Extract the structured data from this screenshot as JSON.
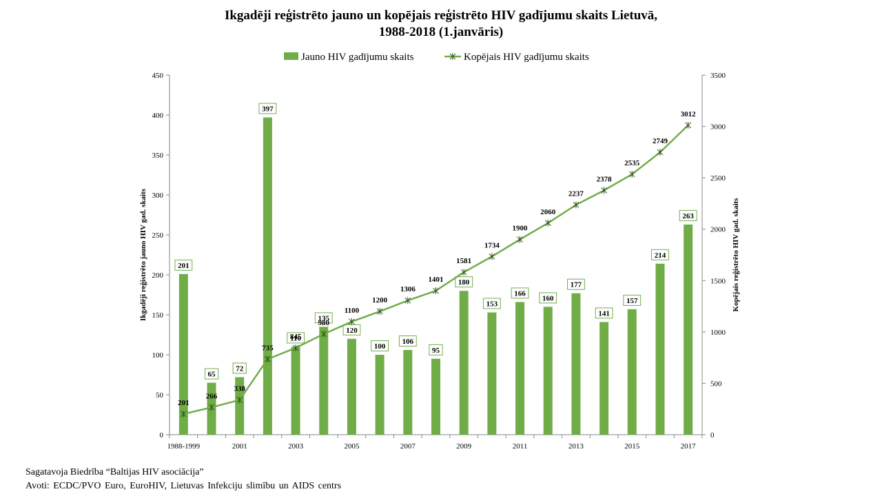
{
  "chart_data": {
    "type": "bar",
    "title": [
      "Ikgadēji reģistrēto jauno un kopējais reģistrēto HIV gadījumu skaits Lietuvā,",
      "1988-2018 (1.janvāris)"
    ],
    "categories": [
      "1988-1999",
      "",
      "2001",
      "",
      "2003",
      "",
      "2005",
      "",
      "2007",
      "",
      "2009",
      "",
      "2011",
      "",
      "2013",
      "",
      "2015",
      "",
      "2017"
    ],
    "series": [
      {
        "name": "Jauno HIV gadījumu skaits",
        "values": [
          201,
          65,
          72,
          397,
          110,
          135,
          120,
          100,
          106,
          95,
          180,
          153,
          166,
          160,
          177,
          141,
          157,
          214,
          263
        ]
      },
      {
        "name": "Kopējais HIV gadījumu skaits",
        "values": [
          201,
          266,
          338,
          735,
          845,
          980,
          1100,
          1200,
          1306,
          1401,
          1581,
          1734,
          1900,
          2060,
          2237,
          2378,
          2535,
          2749,
          3012
        ]
      }
    ],
    "ylabel_left": "Ikgadēji reģistrēto jauno HIV gad. skaits",
    "ylabel_right": "Kopējais reģistrēto HIV gad. skaits",
    "ylim_left": [
      0,
      450
    ],
    "yticks_left": [
      0,
      50,
      100,
      150,
      200,
      250,
      300,
      350,
      400,
      450
    ],
    "ylim_right": [
      0,
      3500
    ],
    "yticks_right": [
      0,
      500,
      1000,
      1500,
      2000,
      2500,
      3000,
      3500
    ],
    "colors": {
      "series": "#70ad47",
      "marker": "#2f4f1f",
      "axis": "#868686"
    }
  },
  "footer": {
    "prepared_by": "Sagatavoja Biedrība “Baltijas HIV asociācija”",
    "sources": "Avoti: ECDC/PVO Euro, EuroHIV, Lietuvas Infekciju slimību un AIDS centrs"
  }
}
